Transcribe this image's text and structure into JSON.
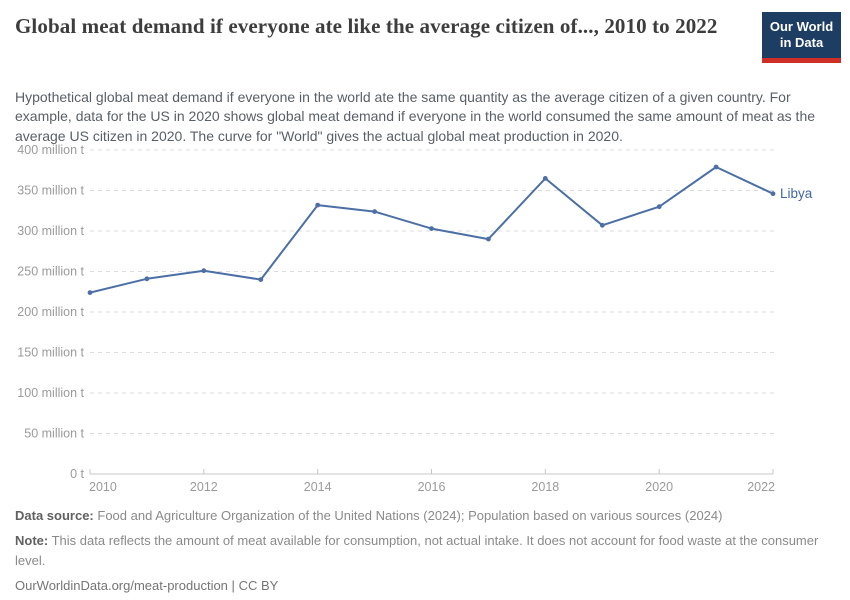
{
  "header": {
    "title": "Global meat demand if everyone ate like the average citizen of..., 2010 to 2022",
    "logo": {
      "line1": "Our World",
      "line2": "in Data"
    }
  },
  "subtitle": "Hypothetical global meat demand if everyone in the world ate the same quantity as the average citizen of a given country. For example, data for the US in 2020 shows global meat demand if everyone in the world consumed the same amount of meat as the average US citizen in 2020. The curve for \"World\" gives the actual global meat production in 2020.",
  "chart_data": {
    "type": "line",
    "title": "Global meat demand if everyone ate like the average citizen of..., 2010 to 2022",
    "unit": "million t",
    "x": [
      2010,
      2011,
      2012,
      2013,
      2014,
      2015,
      2016,
      2017,
      2018,
      2019,
      2020,
      2021,
      2022
    ],
    "series": [
      {
        "name": "Libya",
        "values": [
          224,
          241,
          251,
          240,
          332,
          324,
          303,
          290,
          365,
          307,
          330,
          379,
          346
        ]
      }
    ],
    "end_label": "Libya",
    "xlim": [
      2010,
      2022
    ],
    "ylim": [
      0,
      400
    ],
    "x_ticks": [
      "2010",
      "2012",
      "2014",
      "2016",
      "2018",
      "2020",
      "2022"
    ],
    "y_ticks": [
      {
        "value": 0,
        "label": "0 t"
      },
      {
        "value": 50,
        "label": "50 million t"
      },
      {
        "value": 100,
        "label": "100 million t"
      },
      {
        "value": 150,
        "label": "150 million t"
      },
      {
        "value": 200,
        "label": "200 million t"
      },
      {
        "value": 250,
        "label": "250 million t"
      },
      {
        "value": 300,
        "label": "300 million t"
      },
      {
        "value": 350,
        "label": "350 million t"
      },
      {
        "value": 400,
        "label": "400 million t"
      }
    ],
    "grid": "horizontal-dashed",
    "legend_position": "end-of-line"
  },
  "footer": {
    "data_source_label": "Data source:",
    "data_source": "Food and Agriculture Organization of the United Nations (2024); Population based on various sources (2024)",
    "note_label": "Note:",
    "note": "This data reflects the amount of meat available for consumption, not actual intake. It does not account for food waste at the consumer level.",
    "link": "OurWorldinData.org/meat-production",
    "separator": "|",
    "license": "CC BY"
  },
  "colors": {
    "line": "#4c6fa5",
    "end_label": "#4067a3",
    "grid": "#dcdcdc",
    "axis": "#c8c8c8",
    "tick_label": "#9b9b9b",
    "logo_background": "#1d3d63",
    "logo_accent": "#cf2e27",
    "title_text": "#3d3d3d"
  }
}
